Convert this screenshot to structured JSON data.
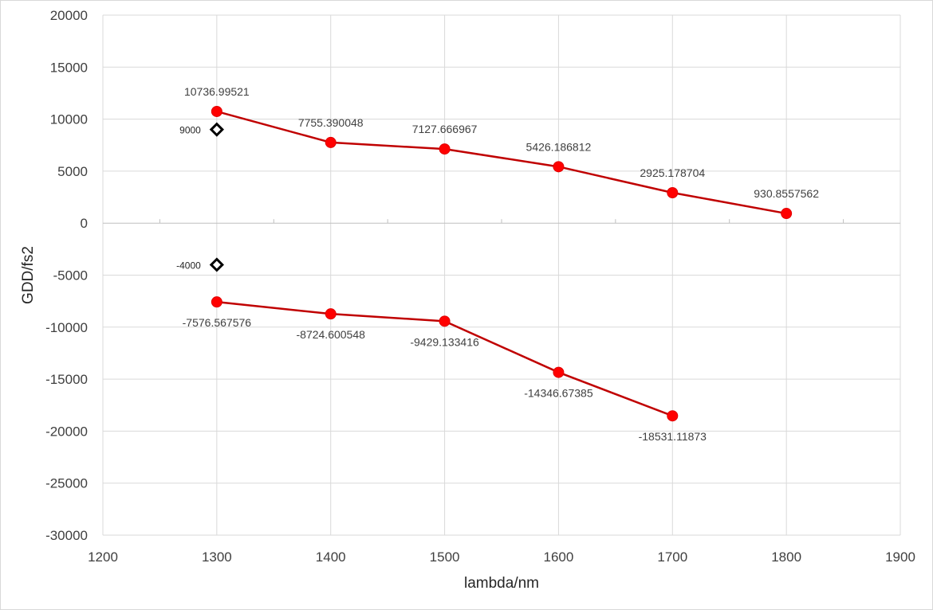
{
  "chart_data": {
    "type": "scatter",
    "title": "",
    "xlabel": "lambda/nm",
    "ylabel": "GDD/fs2",
    "xlim": [
      1200,
      1900
    ],
    "ylim": [
      -30000,
      20000
    ],
    "x_ticks": [
      1200,
      1300,
      1400,
      1500,
      1600,
      1700,
      1800,
      1900
    ],
    "y_ticks": [
      20000,
      15000,
      10000,
      5000,
      0,
      -5000,
      -10000,
      -15000,
      -20000,
      -25000,
      -30000
    ],
    "grid": true,
    "legend": "none",
    "series": [
      {
        "x": [
          1300,
          1400,
          1500,
          1600,
          1700,
          1800
        ],
        "y": [
          10736.99521,
          7755.390048,
          7127.666967,
          5426.186812,
          2925.178704,
          930.8557562
        ],
        "labels": [
          "10736.99521",
          "7755.390048",
          "7127.666967",
          "5426.186812",
          "2925.178704",
          "930.8557562"
        ],
        "label_position": "above",
        "color": "#ff0000",
        "line_color": "#c00000",
        "marker": "circle"
      },
      {
        "x": [
          1300,
          1400,
          1500,
          1600,
          1700
        ],
        "y": [
          -7576.567576,
          -8724.600548,
          -9429.133416,
          -14346.67385,
          -18531.11873
        ],
        "labels": [
          "-7576.567576",
          "-8724.600548",
          "-9429.133416",
          "-14346.67385",
          "-18531.11873"
        ],
        "label_position": "below",
        "color": "#ff0000",
        "line_color": "#c00000",
        "marker": "circle"
      },
      {
        "x": [
          1300,
          1300
        ],
        "y": [
          9000,
          -4000
        ],
        "labels": [
          "9000",
          "-4000"
        ],
        "label_position": "left",
        "color": "#000000",
        "marker": "diamond"
      }
    ]
  }
}
